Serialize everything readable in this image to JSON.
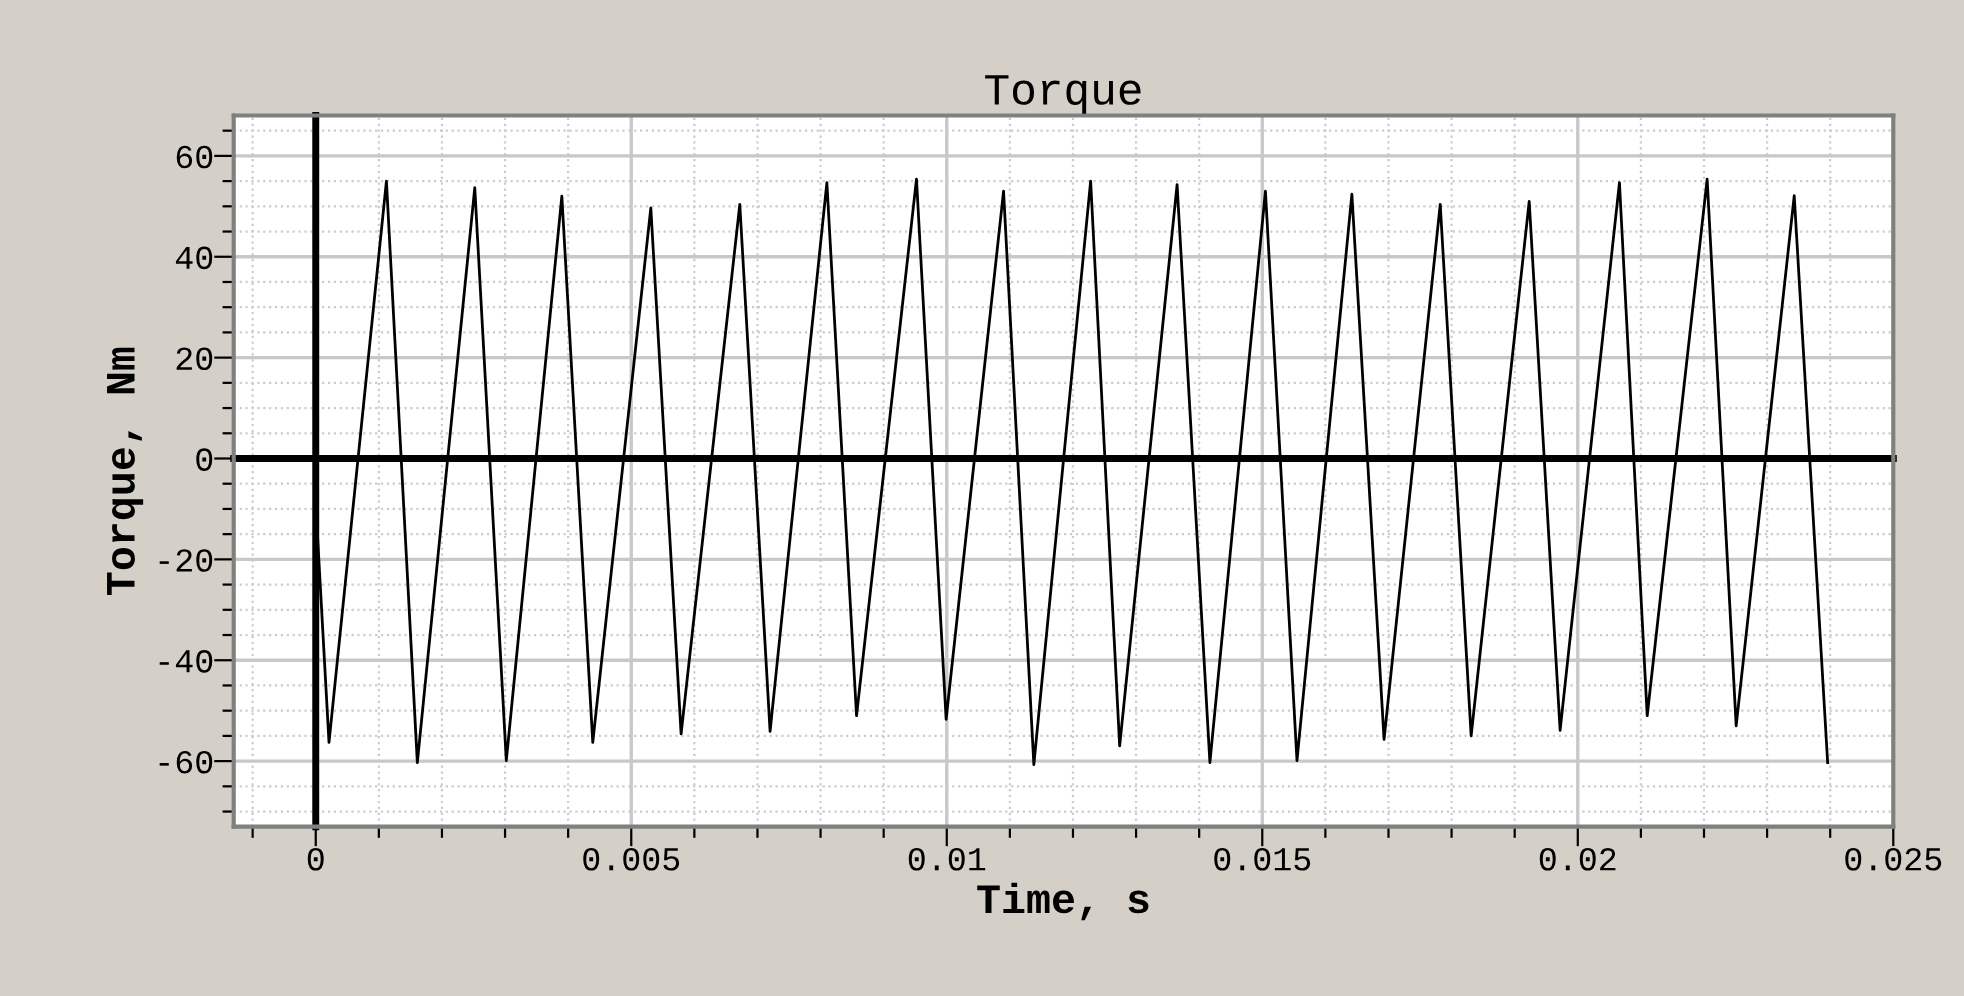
{
  "chart_data": {
    "type": "line",
    "title": "Torque",
    "xlabel": "Time, s",
    "ylabel": "Torque, Nm",
    "x": [
      0,
      0.00021,
      0.00112,
      0.00161,
      0.00252,
      0.00302,
      0.0039,
      0.00439,
      0.00531,
      0.00579,
      0.00672,
      0.0072,
      0.0081,
      0.00857,
      0.00952,
      0.00999,
      0.0109,
      0.01138,
      0.01228,
      0.01274,
      0.01365,
      0.01417,
      0.01505,
      0.01555,
      0.01642,
      0.01693,
      0.01782,
      0.01831,
      0.01923,
      0.01972,
      0.02066,
      0.0211,
      0.02205,
      0.02251,
      0.02343,
      0.02396
    ],
    "series": [
      {
        "color": "#000000",
        "values": [
          -9,
          -56.3,
          55.0,
          -60.3,
          53.7,
          -59.9,
          52.0,
          -56.3,
          49.7,
          -54.6,
          50.4,
          -54.1,
          54.7,
          -51.0,
          55.4,
          -51.7,
          53.0,
          -60.7,
          55.0,
          -57.0,
          54.3,
          -60.3,
          53.0,
          -59.9,
          52.4,
          -55.7,
          50.4,
          -55.0,
          51.0,
          -53.9,
          54.7,
          -51.0,
          55.4,
          -53.0,
          52.1,
          -60.3
        ]
      }
    ],
    "xlim": [
      -0.0013,
      0.025
    ],
    "ylim": [
      -73,
      68
    ],
    "xticks": [
      {
        "value": -0.001,
        "label": null
      },
      0,
      {
        "value": 0.001,
        "label": null
      },
      {
        "value": 0.002,
        "label": null
      },
      {
        "value": 0.003,
        "label": null
      },
      {
        "value": 0.004,
        "label": null
      },
      0.005,
      {
        "value": 0.006,
        "label": null
      },
      {
        "value": 0.007,
        "label": null
      },
      {
        "value": 0.008,
        "label": null
      },
      {
        "value": 0.009,
        "label": null
      },
      0.01,
      {
        "value": 0.011,
        "label": null
      },
      {
        "value": 0.012,
        "label": null
      },
      {
        "value": 0.013,
        "label": null
      },
      {
        "value": 0.014,
        "label": null
      },
      0.015,
      {
        "value": 0.016,
        "label": null
      },
      {
        "value": 0.017,
        "label": null
      },
      {
        "value": 0.018,
        "label": null
      },
      {
        "value": 0.019,
        "label": null
      },
      0.02,
      {
        "value": 0.021,
        "label": null
      },
      {
        "value": 0.022,
        "label": null
      },
      {
        "value": 0.023,
        "label": null
      },
      {
        "value": 0.024,
        "label": null
      },
      0.025
    ],
    "yticks": [
      {
        "value": -70,
        "label": null
      },
      {
        "value": -65,
        "label": null
      },
      -60,
      {
        "value": -55,
        "label": null
      },
      {
        "value": -50,
        "label": null
      },
      {
        "value": -45,
        "label": null
      },
      -40,
      {
        "value": -35,
        "label": null
      },
      {
        "value": -30,
        "label": null
      },
      {
        "value": -25,
        "label": null
      },
      -20,
      {
        "value": -15,
        "label": null
      },
      {
        "value": -10,
        "label": null
      },
      {
        "value": -5,
        "label": null
      },
      0,
      {
        "value": 5,
        "label": null
      },
      {
        "value": 10,
        "label": null
      },
      {
        "value": 15,
        "label": null
      },
      20,
      {
        "value": 25,
        "label": null
      },
      {
        "value": 30,
        "label": null
      },
      {
        "value": 35,
        "label": null
      },
      40,
      {
        "value": 45,
        "label": null
      },
      {
        "value": 50,
        "label": null
      },
      {
        "value": 55,
        "label": null
      },
      60,
      {
        "value": 65,
        "label": null
      }
    ],
    "grid": true,
    "marker": "none",
    "line_style": "solid",
    "legend": false
  }
}
